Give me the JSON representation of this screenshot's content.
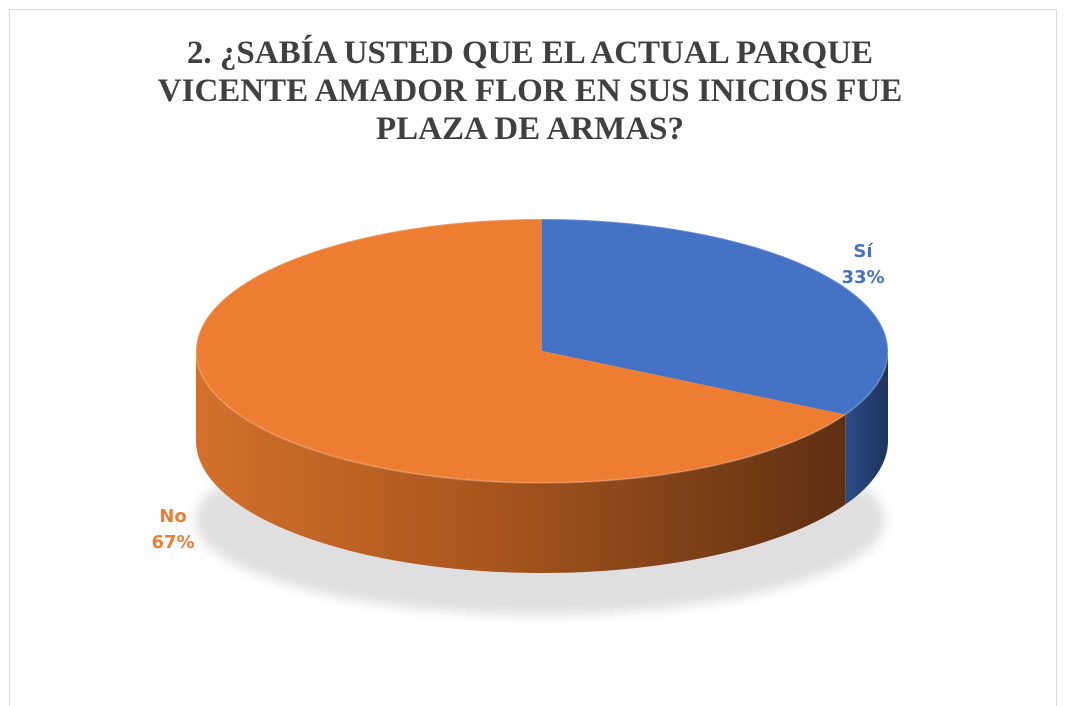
{
  "chart_data": {
    "type": "pie",
    "title": "2. ¿SABÍA USTED QUE EL ACTUAL PARQUE VICENTE AMADOR FLOR EN SUS INICIOS FUE PLAZA DE ARMAS?",
    "three_d": true,
    "legend": "none",
    "slices": [
      {
        "label": "Sí",
        "value": 33,
        "value_label": "33%",
        "color": "#4472c4"
      },
      {
        "label": "No",
        "value": 67,
        "value_label": "67%",
        "color": "#ed7d31"
      }
    ]
  }
}
